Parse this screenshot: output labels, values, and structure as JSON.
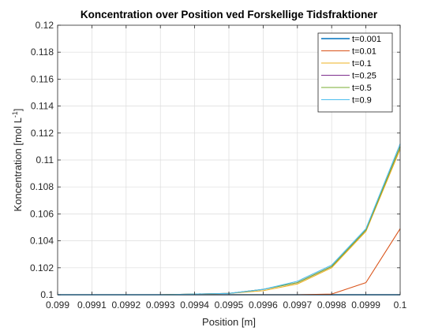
{
  "chart_data": {
    "type": "line",
    "title": "Koncentration over Position ved Forskellige Tidsfraktioner",
    "xlabel": "Position [m]",
    "ylabel": "Koncentration [mol L",
    "ylabel_superscript": "-1",
    "ylabel_suffix": "]",
    "xlim": [
      0.099,
      0.1
    ],
    "ylim": [
      0.1,
      0.12
    ],
    "x_ticks": [
      0.099,
      0.0991,
      0.0992,
      0.0993,
      0.0994,
      0.0995,
      0.0996,
      0.0997,
      0.0998,
      0.0999,
      0.1
    ],
    "x_tick_labels": [
      "0.099",
      "0.0991",
      "0.0992",
      "0.0993",
      "0.0994",
      "0.0995",
      "0.0996",
      "0.0997",
      "0.0998",
      "0.0999",
      "0.1"
    ],
    "y_ticks": [
      0.1,
      0.102,
      0.104,
      0.106,
      0.108,
      0.11,
      0.112,
      0.114,
      0.116,
      0.118,
      0.12
    ],
    "y_tick_labels": [
      "0.1",
      "0.102",
      "0.104",
      "0.106",
      "0.108",
      "0.11",
      "0.112",
      "0.114",
      "0.116",
      "0.118",
      "0.12"
    ],
    "grid": true,
    "legend_position": "top-right",
    "x": [
      0.099,
      0.0991,
      0.0992,
      0.0993,
      0.0994,
      0.0995,
      0.0996,
      0.0997,
      0.0998,
      0.0999,
      0.1
    ],
    "series": [
      {
        "name": "t=0.001",
        "color": "#0072BD",
        "values": [
          0.1,
          0.1,
          0.1,
          0.1,
          0.1,
          0.1,
          0.1,
          0.1,
          0.1,
          0.1,
          0.1
        ]
      },
      {
        "name": "t=0.01",
        "color": "#D95319",
        "values": [
          0.1,
          0.1,
          0.1,
          0.1,
          0.1,
          0.1,
          0.1,
          0.1,
          0.10005,
          0.1009,
          0.1049
        ]
      },
      {
        "name": "t=0.1",
        "color": "#EDB120",
        "values": [
          0.1,
          0.1,
          0.1,
          0.1,
          0.10005,
          0.1001,
          0.1003,
          0.1008,
          0.102,
          0.1047,
          0.1108
        ]
      },
      {
        "name": "t=0.25",
        "color": "#7E2F8E",
        "values": [
          0.1,
          0.1,
          0.1,
          0.1,
          0.10005,
          0.1001,
          0.1004,
          0.1009,
          0.1021,
          0.1048,
          0.111
        ]
      },
      {
        "name": "t=0.5",
        "color": "#77AC30",
        "values": [
          0.1,
          0.1,
          0.1,
          0.1,
          0.10005,
          0.1001,
          0.1004,
          0.1009,
          0.1021,
          0.1048,
          0.111
        ]
      },
      {
        "name": "t=0.9",
        "color": "#4DBEEE",
        "values": [
          0.1,
          0.1,
          0.1,
          0.1,
          0.10005,
          0.1001,
          0.1004,
          0.101,
          0.1022,
          0.1049,
          0.1112
        ]
      }
    ]
  }
}
